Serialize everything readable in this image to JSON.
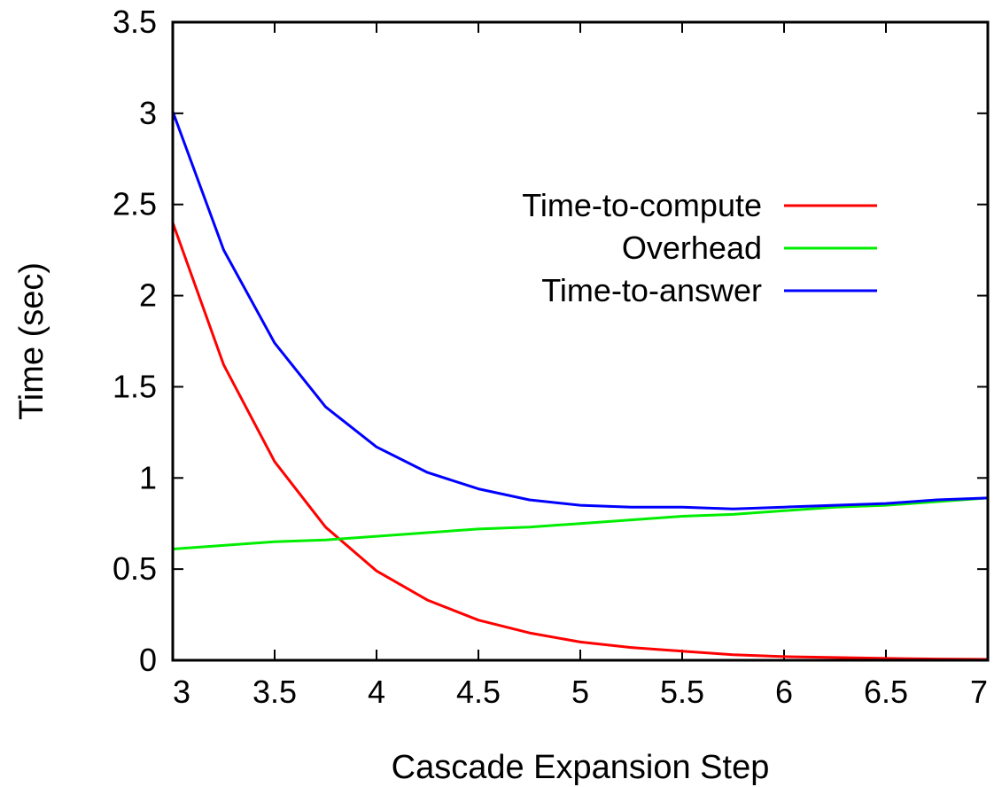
{
  "chart_data": {
    "type": "line",
    "title": "",
    "xlabel": "Cascade Expansion Step",
    "ylabel": "Time (sec)",
    "xlim": [
      3,
      7
    ],
    "ylim": [
      0,
      3.5
    ],
    "xticks": [
      "3",
      "3.5",
      "4",
      "4.5",
      "5",
      "5.5",
      "6",
      "6.5",
      "7"
    ],
    "yticks": [
      "0",
      "0.5",
      "1",
      "1.5",
      "2",
      "2.5",
      "3",
      "3.5"
    ],
    "grid": false,
    "legend_position": "top-right",
    "x": [
      3,
      3.25,
      3.5,
      3.75,
      4,
      4.25,
      4.5,
      4.75,
      5,
      5.25,
      5.5,
      5.75,
      6,
      6.25,
      6.5,
      6.75,
      7
    ],
    "series": [
      {
        "name": "Time-to-compute",
        "color": "#ff0000",
        "values": [
          2.4,
          1.62,
          1.09,
          0.73,
          0.49,
          0.33,
          0.22,
          0.15,
          0.1,
          0.07,
          0.05,
          0.03,
          0.02,
          0.015,
          0.01,
          0.007,
          0.005
        ]
      },
      {
        "name": "Overhead",
        "color": "#00ee00",
        "values": [
          0.61,
          0.63,
          0.65,
          0.66,
          0.68,
          0.7,
          0.72,
          0.73,
          0.75,
          0.77,
          0.79,
          0.8,
          0.82,
          0.84,
          0.85,
          0.87,
          0.89
        ]
      },
      {
        "name": "Time-to-answer",
        "color": "#0000ff",
        "values": [
          3.01,
          2.25,
          1.74,
          1.39,
          1.17,
          1.03,
          0.94,
          0.88,
          0.85,
          0.84,
          0.84,
          0.83,
          0.84,
          0.85,
          0.86,
          0.88,
          0.89
        ]
      }
    ]
  }
}
